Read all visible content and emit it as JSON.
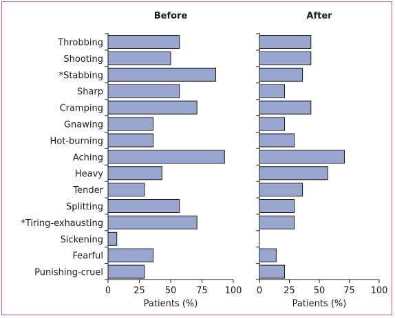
{
  "chart_data": [
    {
      "type": "bar",
      "orientation": "horizontal",
      "title": "Before",
      "xlabel": "Patients (%)",
      "xlim": [
        0,
        100
      ],
      "xticks": [
        "0",
        "25",
        "50",
        "75",
        "100"
      ],
      "categories": [
        "Throbbing",
        "Shooting",
        "*Stabbing",
        "Sharp",
        "Cramping",
        "Gnawing",
        "Hot-burning",
        "Aching",
        "Heavy",
        "Tender",
        "Splitting",
        "*Tiring-exhausting",
        "Sickening",
        "Fearful",
        "Punishing-cruel"
      ],
      "values": [
        57,
        50,
        86,
        57,
        71,
        36,
        36,
        93,
        43,
        29,
        57,
        71,
        7,
        36,
        29
      ]
    },
    {
      "type": "bar",
      "orientation": "horizontal",
      "title": "After",
      "xlabel": "Patients (%)",
      "xlim": [
        0,
        100
      ],
      "xticks": [
        "0",
        "25",
        "50",
        "75",
        "100"
      ],
      "categories": [
        "Throbbing",
        "Shooting",
        "*Stabbing",
        "Sharp",
        "Cramping",
        "Gnawing",
        "Hot-burning",
        "Aching",
        "Heavy",
        "Tender",
        "Splitting",
        "*Tiring-exhausting",
        "Sickening",
        "Fearful",
        "Punishing-cruel"
      ],
      "values": [
        43,
        43,
        36,
        21,
        43,
        21,
        29,
        71,
        57,
        36,
        29,
        29,
        0,
        14,
        21
      ]
    }
  ]
}
